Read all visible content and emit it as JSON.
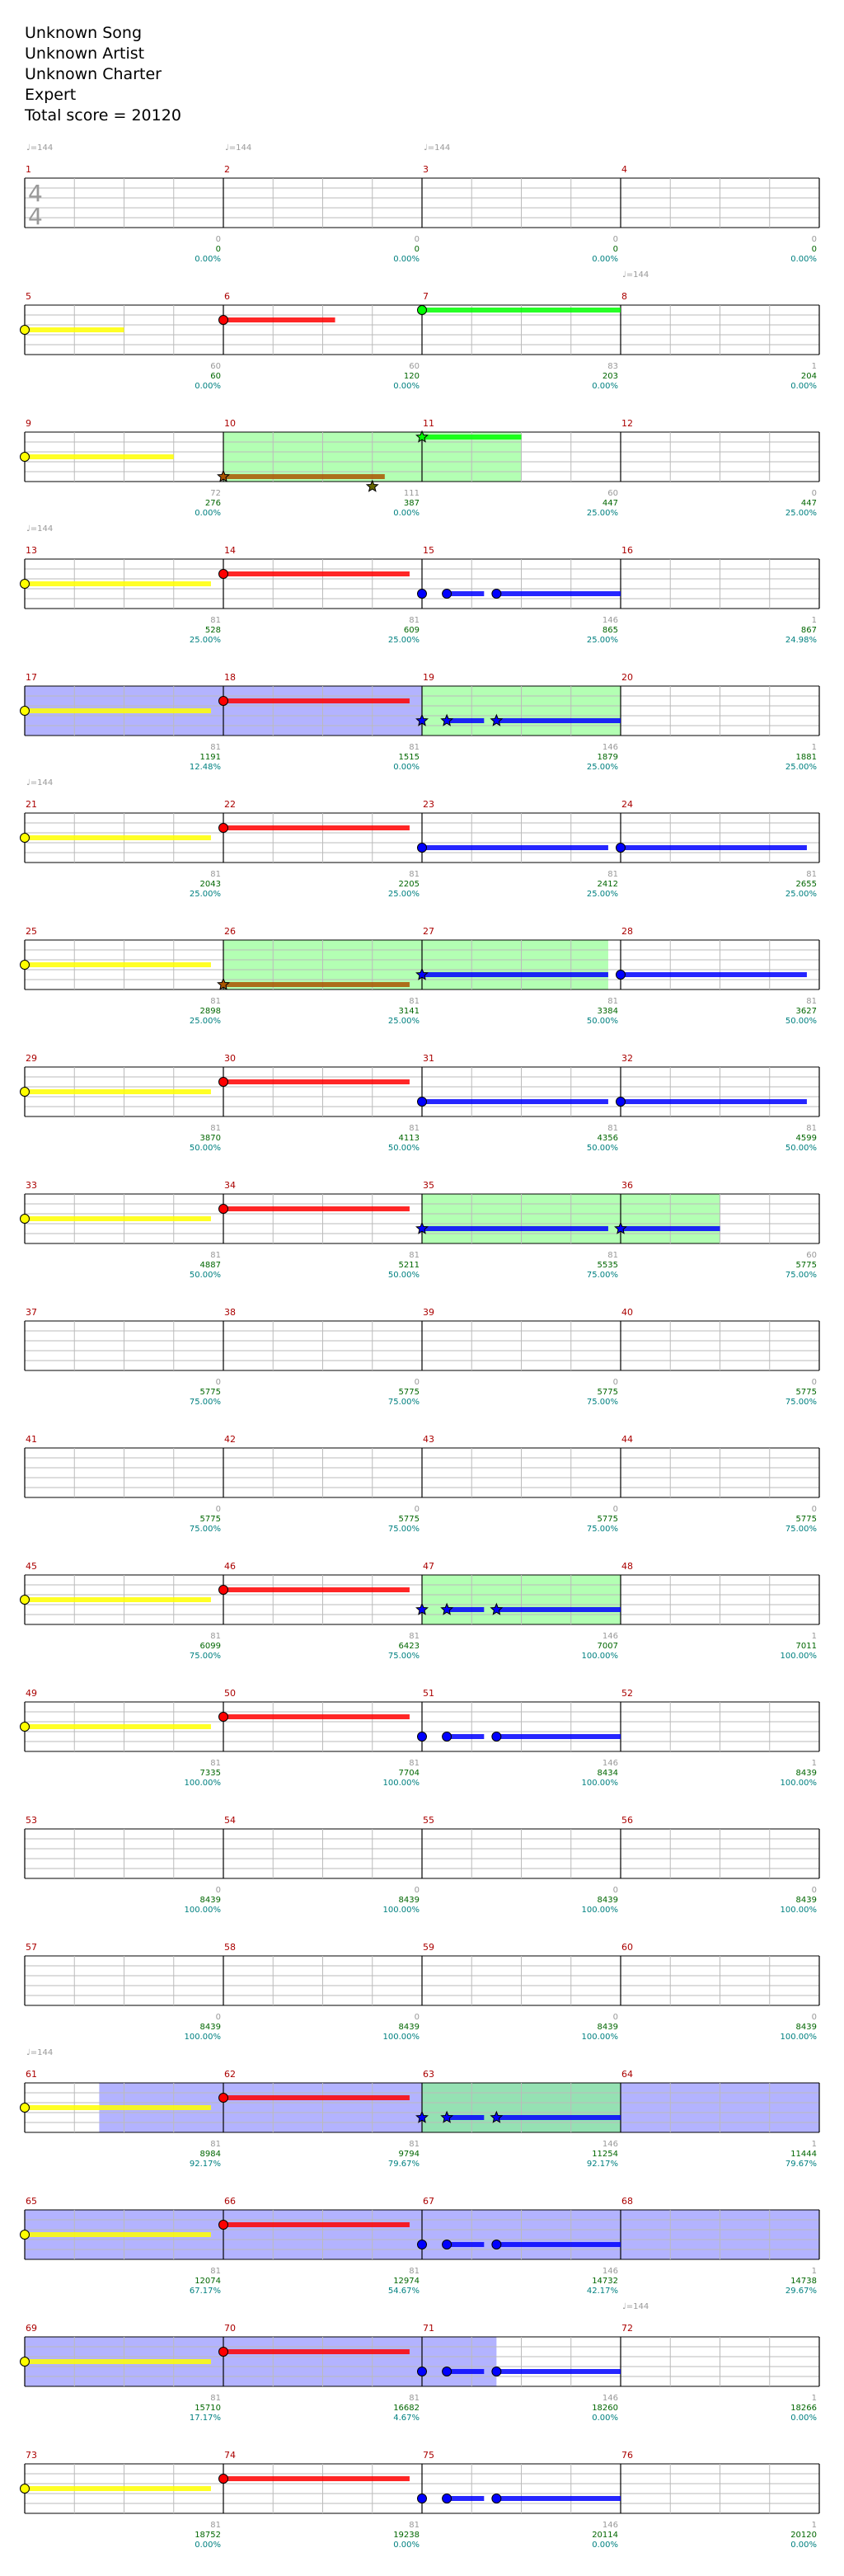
{
  "header": {
    "song": "Unknown Song",
    "artist": "Unknown Artist",
    "charter": "Unknown Charter",
    "difficulty": "Expert",
    "total_score": "Total score = 20120"
  },
  "time_signature": {
    "top": "4",
    "bottom": "4"
  },
  "tempo_label": "♩=144",
  "colors": {
    "grid_minor": "#bbbbbb",
    "grid_major": "#000000",
    "green": "#00ff00",
    "red": "#ff0000",
    "yellow": "#ffff00",
    "blue": "#0000ff",
    "orange": "#aa5500",
    "overdrive": "#80ff80",
    "solo": "#8080ff",
    "measure_num": "#aa0000",
    "score_green": "#006600",
    "percent_teal": "#008080",
    "notes_gray": "#999999"
  },
  "rows": [
    {
      "measures": [
        "1",
        "2",
        "3",
        "4"
      ],
      "notes": [
        "0",
        "0",
        "0",
        "0"
      ],
      "scores": [
        "0",
        "0",
        "0",
        "0"
      ],
      "percents": [
        "0.00%",
        "0.00%",
        "0.00%",
        "0.00%"
      ]
    },
    {
      "measures": [
        "5",
        "6",
        "7",
        "8"
      ],
      "notes": [
        "60",
        "60",
        "83",
        "1"
      ],
      "scores": [
        "60",
        "120",
        "203",
        "204"
      ],
      "percents": [
        "0.00%",
        "0.00%",
        "0.00%",
        "0.00%"
      ]
    },
    {
      "measures": [
        "9",
        "10",
        "11",
        "12"
      ],
      "notes": [
        "72",
        "111",
        "60",
        "0"
      ],
      "scores": [
        "276",
        "387",
        "447",
        "447"
      ],
      "percents": [
        "0.00%",
        "0.00%",
        "25.00%",
        "25.00%"
      ]
    },
    {
      "measures": [
        "13",
        "14",
        "15",
        "16"
      ],
      "notes": [
        "81",
        "81",
        "146",
        "1"
      ],
      "scores": [
        "528",
        "609",
        "865",
        "867"
      ],
      "percents": [
        "25.00%",
        "25.00%",
        "25.00%",
        "24.98%"
      ]
    },
    {
      "measures": [
        "17",
        "18",
        "19",
        "20"
      ],
      "notes": [
        "81",
        "81",
        "146",
        "1"
      ],
      "scores": [
        "1191",
        "1515",
        "1879",
        "1881"
      ],
      "percents": [
        "12.48%",
        "0.00%",
        "25.00%",
        "25.00%"
      ]
    },
    {
      "measures": [
        "21",
        "22",
        "23",
        "24"
      ],
      "notes": [
        "81",
        "81",
        "81",
        "81"
      ],
      "scores": [
        "2043",
        "2205",
        "2412",
        "2655"
      ],
      "percents": [
        "25.00%",
        "25.00%",
        "25.00%",
        "25.00%"
      ]
    },
    {
      "measures": [
        "25",
        "26",
        "27",
        "28"
      ],
      "notes": [
        "81",
        "81",
        "81",
        "81"
      ],
      "scores": [
        "2898",
        "3141",
        "3384",
        "3627"
      ],
      "percents": [
        "25.00%",
        "25.00%",
        "50.00%",
        "50.00%"
      ]
    },
    {
      "measures": [
        "29",
        "30",
        "31",
        "32"
      ],
      "notes": [
        "81",
        "81",
        "81",
        "81"
      ],
      "scores": [
        "3870",
        "4113",
        "4356",
        "4599"
      ],
      "percents": [
        "50.00%",
        "50.00%",
        "50.00%",
        "50.00%"
      ]
    },
    {
      "measures": [
        "33",
        "34",
        "35",
        "36"
      ],
      "notes": [
        "81",
        "81",
        "81",
        "60"
      ],
      "scores": [
        "4887",
        "5211",
        "5535",
        "5775"
      ],
      "percents": [
        "50.00%",
        "50.00%",
        "75.00%",
        "75.00%"
      ]
    },
    {
      "measures": [
        "37",
        "38",
        "39",
        "40"
      ],
      "notes": [
        "0",
        "0",
        "0",
        "0"
      ],
      "scores": [
        "5775",
        "5775",
        "5775",
        "5775"
      ],
      "percents": [
        "75.00%",
        "75.00%",
        "75.00%",
        "75.00%"
      ]
    },
    {
      "measures": [
        "41",
        "42",
        "43",
        "44"
      ],
      "notes": [
        "0",
        "0",
        "0",
        "0"
      ],
      "scores": [
        "5775",
        "5775",
        "5775",
        "5775"
      ],
      "percents": [
        "75.00%",
        "75.00%",
        "75.00%",
        "75.00%"
      ]
    },
    {
      "measures": [
        "45",
        "46",
        "47",
        "48"
      ],
      "notes": [
        "81",
        "81",
        "146",
        "1"
      ],
      "scores": [
        "6099",
        "6423",
        "7007",
        "7011"
      ],
      "percents": [
        "75.00%",
        "75.00%",
        "100.00%",
        "100.00%"
      ]
    },
    {
      "measures": [
        "49",
        "50",
        "51",
        "52"
      ],
      "notes": [
        "81",
        "81",
        "146",
        "1"
      ],
      "scores": [
        "7335",
        "7704",
        "8434",
        "8439"
      ],
      "percents": [
        "100.00%",
        "100.00%",
        "100.00%",
        "100.00%"
      ]
    },
    {
      "measures": [
        "53",
        "54",
        "55",
        "56"
      ],
      "notes": [
        "0",
        "0",
        "0",
        "0"
      ],
      "scores": [
        "8439",
        "8439",
        "8439",
        "8439"
      ],
      "percents": [
        "100.00%",
        "100.00%",
        "100.00%",
        "100.00%"
      ]
    },
    {
      "measures": [
        "57",
        "58",
        "59",
        "60"
      ],
      "notes": [
        "0",
        "0",
        "0",
        "0"
      ],
      "scores": [
        "8439",
        "8439",
        "8439",
        "8439"
      ],
      "percents": [
        "100.00%",
        "100.00%",
        "100.00%",
        "100.00%"
      ]
    },
    {
      "measures": [
        "61",
        "62",
        "63",
        "64"
      ],
      "notes": [
        "81",
        "81",
        "146",
        "1"
      ],
      "scores": [
        "8984",
        "9794",
        "11254",
        "11444"
      ],
      "percents": [
        "92.17%",
        "79.67%",
        "92.17%",
        "79.67%"
      ]
    },
    {
      "measures": [
        "65",
        "66",
        "67",
        "68"
      ],
      "notes": [
        "81",
        "81",
        "146",
        "1"
      ],
      "scores": [
        "12074",
        "12974",
        "14732",
        "14738"
      ],
      "percents": [
        "67.17%",
        "54.67%",
        "42.17%",
        "29.67%"
      ]
    },
    {
      "measures": [
        "69",
        "70",
        "71",
        "72"
      ],
      "notes": [
        "81",
        "81",
        "146",
        "1"
      ],
      "scores": [
        "15710",
        "16682",
        "18260",
        "18266"
      ],
      "percents": [
        "17.17%",
        "4.67%",
        "0.00%",
        "0.00%"
      ]
    },
    {
      "measures": [
        "73",
        "74",
        "75",
        "76"
      ],
      "notes": [
        "81",
        "81",
        "146",
        "1"
      ],
      "scores": [
        "18752",
        "19238",
        "20114",
        "20120"
      ],
      "percents": [
        "0.00%",
        "0.00%",
        "0.00%",
        "0.00%"
      ]
    }
  ],
  "tempo_marks": [
    {
      "row": 0,
      "beat": 0
    },
    {
      "row": 0,
      "beat": 4
    },
    {
      "row": 0,
      "beat": 8
    },
    {
      "row": 1,
      "beat": 12
    },
    {
      "row": 3,
      "beat": 0
    },
    {
      "row": 5,
      "beat": 0
    },
    {
      "row": 15,
      "beat": 0
    },
    {
      "row": 17,
      "beat": 12
    }
  ],
  "chart_data": {
    "type": "notechart",
    "beats_per_measure": 4,
    "measures_per_row": 4,
    "lanes": [
      "green",
      "red",
      "yellow",
      "blue",
      "orange"
    ],
    "overdrive": [
      {
        "row": 2,
        "start": 4,
        "end": 10
      },
      {
        "row": 4,
        "start": 8,
        "end": 12
      },
      {
        "row": 6,
        "start": 4,
        "end": 11.75
      },
      {
        "row": 8,
        "start": 8,
        "end": 14
      },
      {
        "row": 11,
        "start": 8,
        "end": 12
      },
      {
        "row": 15,
        "start": 8,
        "end": 12
      }
    ],
    "solo": [
      {
        "row": 4,
        "start": 0,
        "end": 8
      },
      {
        "row": 15,
        "start": 1.5,
        "end": 16
      },
      {
        "row": 16,
        "start": 0,
        "end": 16
      },
      {
        "row": 17,
        "start": 0,
        "end": 9.5
      }
    ],
    "notes": [
      {
        "row": 1,
        "beat": 0,
        "lane": "yellow",
        "sustain": 2
      },
      {
        "row": 1,
        "beat": 4,
        "lane": "red",
        "sustain": 2.25
      },
      {
        "row": 1,
        "beat": 8,
        "lane": "green",
        "sustain": 4
      },
      {
        "row": 2,
        "beat": 0,
        "lane": "yellow",
        "sustain": 3
      },
      {
        "row": 2,
        "beat": 4,
        "lane": "orange",
        "sustain": 3.25,
        "star": true
      },
      {
        "row": 2,
        "beat": 7,
        "lane": "lane6",
        "sustain": 0,
        "star": true
      },
      {
        "row": 2,
        "beat": 8,
        "lane": "green",
        "sustain": 2,
        "star": true
      },
      {
        "row": 3,
        "beat": 0,
        "lane": "yellow",
        "sustain": 3.75
      },
      {
        "row": 3,
        "beat": 4,
        "lane": "red",
        "sustain": 3.75
      },
      {
        "row": 3,
        "beat": 8,
        "lane": "blue",
        "sustain": 0
      },
      {
        "row": 3,
        "beat": 8.5,
        "lane": "blue",
        "sustain": 0.75
      },
      {
        "row": 3,
        "beat": 9.5,
        "lane": "blue",
        "sustain": 2.5
      },
      {
        "row": 4,
        "beat": 0,
        "lane": "yellow",
        "sustain": 3.75
      },
      {
        "row": 4,
        "beat": 4,
        "lane": "red",
        "sustain": 3.75
      },
      {
        "row": 4,
        "beat": 8,
        "lane": "blue",
        "sustain": 0,
        "star": true
      },
      {
        "row": 4,
        "beat": 8.5,
        "lane": "blue",
        "sustain": 0.75,
        "star": true
      },
      {
        "row": 4,
        "beat": 9.5,
        "lane": "blue",
        "sustain": 2.5,
        "star": true
      },
      {
        "row": 5,
        "beat": 0,
        "lane": "yellow",
        "sustain": 3.75
      },
      {
        "row": 5,
        "beat": 4,
        "lane": "red",
        "sustain": 3.75
      },
      {
        "row": 5,
        "beat": 8,
        "lane": "blue",
        "sustain": 3.75
      },
      {
        "row": 5,
        "beat": 12,
        "lane": "blue",
        "sustain": 3.75
      },
      {
        "row": 6,
        "beat": 0,
        "lane": "yellow",
        "sustain": 3.75
      },
      {
        "row": 6,
        "beat": 4,
        "lane": "orange",
        "sustain": 3.75,
        "star": true
      },
      {
        "row": 6,
        "beat": 8,
        "lane": "blue",
        "sustain": 3.75,
        "star": true
      },
      {
        "row": 6,
        "beat": 12,
        "lane": "blue",
        "sustain": 3.75
      },
      {
        "row": 7,
        "beat": 0,
        "lane": "yellow",
        "sustain": 3.75
      },
      {
        "row": 7,
        "beat": 4,
        "lane": "red",
        "sustain": 3.75
      },
      {
        "row": 7,
        "beat": 8,
        "lane": "blue",
        "sustain": 3.75
      },
      {
        "row": 7,
        "beat": 12,
        "lane": "blue",
        "sustain": 3.75
      },
      {
        "row": 8,
        "beat": 0,
        "lane": "yellow",
        "sustain": 3.75
      },
      {
        "row": 8,
        "beat": 4,
        "lane": "red",
        "sustain": 3.75
      },
      {
        "row": 8,
        "beat": 8,
        "lane": "blue",
        "sustain": 3.75,
        "star": true
      },
      {
        "row": 8,
        "beat": 12,
        "lane": "blue",
        "sustain": 2,
        "star": true
      },
      {
        "row": 11,
        "beat": 0,
        "lane": "yellow",
        "sustain": 3.75
      },
      {
        "row": 11,
        "beat": 4,
        "lane": "red",
        "sustain": 3.75
      },
      {
        "row": 11,
        "beat": 8,
        "lane": "blue",
        "sustain": 0,
        "star": true
      },
      {
        "row": 11,
        "beat": 8.5,
        "lane": "blue",
        "sustain": 0.75,
        "star": true
      },
      {
        "row": 11,
        "beat": 9.5,
        "lane": "blue",
        "sustain": 2.5,
        "star": true
      },
      {
        "row": 12,
        "beat": 0,
        "lane": "yellow",
        "sustain": 3.75
      },
      {
        "row": 12,
        "beat": 4,
        "lane": "red",
        "sustain": 3.75
      },
      {
        "row": 12,
        "beat": 8,
        "lane": "blue",
        "sustain": 0
      },
      {
        "row": 12,
        "beat": 8.5,
        "lane": "blue",
        "sustain": 0.75
      },
      {
        "row": 12,
        "beat": 9.5,
        "lane": "blue",
        "sustain": 2.5
      },
      {
        "row": 15,
        "beat": 0,
        "lane": "yellow",
        "sustain": 3.75
      },
      {
        "row": 15,
        "beat": 4,
        "lane": "red",
        "sustain": 3.75
      },
      {
        "row": 15,
        "beat": 8,
        "lane": "blue",
        "sustain": 0,
        "star": true
      },
      {
        "row": 15,
        "beat": 8.5,
        "lane": "blue",
        "sustain": 0.75,
        "star": true
      },
      {
        "row": 15,
        "beat": 9.5,
        "lane": "blue",
        "sustain": 2.5,
        "star": true
      },
      {
        "row": 16,
        "beat": 0,
        "lane": "yellow",
        "sustain": 3.75
      },
      {
        "row": 16,
        "beat": 4,
        "lane": "red",
        "sustain": 3.75
      },
      {
        "row": 16,
        "beat": 8,
        "lane": "blue",
        "sustain": 0
      },
      {
        "row": 16,
        "beat": 8.5,
        "lane": "blue",
        "sustain": 0.75
      },
      {
        "row": 16,
        "beat": 9.5,
        "lane": "blue",
        "sustain": 2.5
      },
      {
        "row": 17,
        "beat": 0,
        "lane": "yellow",
        "sustain": 3.75
      },
      {
        "row": 17,
        "beat": 4,
        "lane": "red",
        "sustain": 3.75
      },
      {
        "row": 17,
        "beat": 8,
        "lane": "blue",
        "sustain": 0
      },
      {
        "row": 17,
        "beat": 8.5,
        "lane": "blue",
        "sustain": 0.75
      },
      {
        "row": 17,
        "beat": 9.5,
        "lane": "blue",
        "sustain": 2.5
      },
      {
        "row": 18,
        "beat": 0,
        "lane": "yellow",
        "sustain": 3.75
      },
      {
        "row": 18,
        "beat": 4,
        "lane": "red",
        "sustain": 3.75
      },
      {
        "row": 18,
        "beat": 8,
        "lane": "blue",
        "sustain": 0
      },
      {
        "row": 18,
        "beat": 8.5,
        "lane": "blue",
        "sustain": 0.75
      },
      {
        "row": 18,
        "beat": 9.5,
        "lane": "blue",
        "sustain": 2.5
      }
    ]
  }
}
